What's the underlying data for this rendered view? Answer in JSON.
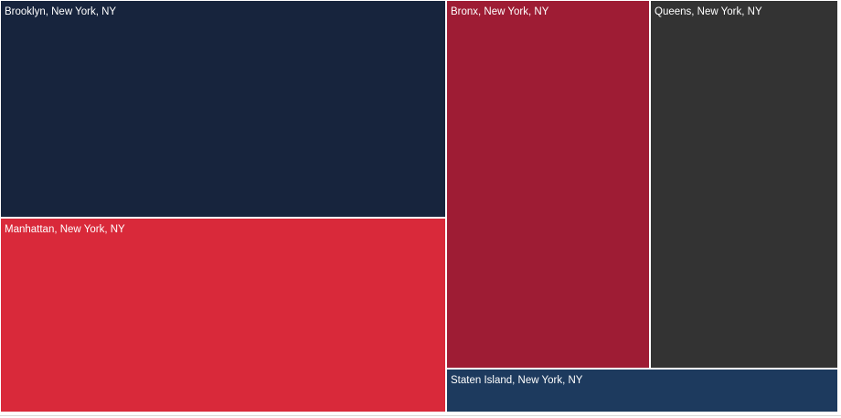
{
  "chart_data": {
    "type": "treemap",
    "title": "",
    "legend": "none",
    "axes": "none",
    "items": [
      {
        "label": "Brooklyn, New York, NY",
        "color": "#17243D",
        "area_share_pct": 28.2
      },
      {
        "label": "Manhattan, New York, NY",
        "color": "#D9293A",
        "area_share_pct": 25.2
      },
      {
        "label": "Bronx, New York, NY",
        "color": "#9E1C34",
        "area_share_pct": 21.8
      },
      {
        "label": "Queens, New York, NY",
        "color": "#333333",
        "area_share_pct": 20.1
      },
      {
        "label": "Staten Island, New York, NY",
        "color": "#1D3A5E",
        "area_share_pct": 4.7
      }
    ],
    "label_text_color": "#FFFFFF",
    "tile_gap_color": "#FFFFFF",
    "bottom_divider_color": "#D9D9D9"
  }
}
